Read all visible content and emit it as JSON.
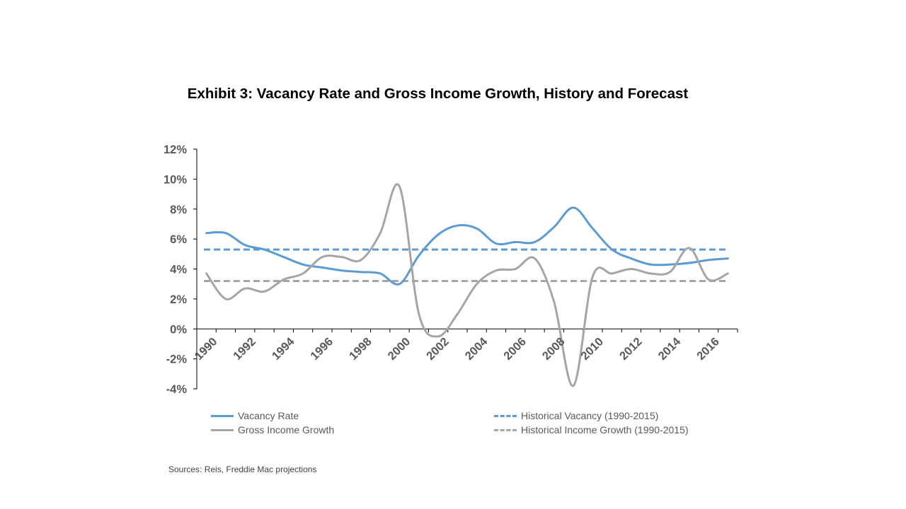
{
  "chart_data": {
    "type": "line",
    "title": "Exhibit 3: Vacancy Rate and Gross Income Growth, History and Forecast",
    "xlabel": "",
    "ylabel": "",
    "x": [
      1990,
      1991,
      1992,
      1993,
      1994,
      1995,
      1996,
      1997,
      1998,
      1999,
      2000,
      2001,
      2002,
      2003,
      2004,
      2005,
      2006,
      2007,
      2008,
      2009,
      2010,
      2011,
      2012,
      2013,
      2014,
      2015,
      2016,
      2017
    ],
    "x_tick_labels": [
      "1990",
      "1992",
      "1994",
      "1996",
      "1998",
      "2000",
      "2002",
      "2004",
      "2006",
      "2008",
      "2010",
      "2012",
      "2014",
      "2016"
    ],
    "ylim": [
      -4,
      12
    ],
    "y_ticks": [
      -4,
      -2,
      0,
      2,
      4,
      6,
      8,
      10,
      12
    ],
    "y_tick_labels": [
      "-4%",
      "-2%",
      "0%",
      "2%",
      "4%",
      "6%",
      "8%",
      "10%",
      "12%"
    ],
    "series": [
      {
        "name": "Vacancy Rate",
        "style": "solid",
        "color": "#5B9BD5",
        "values": [
          6.4,
          6.4,
          5.6,
          5.3,
          4.8,
          4.3,
          4.1,
          3.9,
          3.8,
          3.7,
          3.0,
          4.9,
          6.3,
          6.9,
          6.7,
          5.7,
          5.8,
          5.8,
          6.8,
          8.1,
          6.7,
          5.3,
          4.7,
          4.3,
          4.3,
          4.4,
          4.6,
          4.7
        ]
      },
      {
        "name": "Gross Income Growth",
        "style": "solid",
        "color": "#A5A5A5",
        "values": [
          3.7,
          2.0,
          2.7,
          2.5,
          3.3,
          3.7,
          4.8,
          4.8,
          4.6,
          6.4,
          9.5,
          1.0,
          -0.5,
          1.0,
          3.0,
          3.9,
          4.0,
          4.7,
          1.8,
          -3.8,
          3.5,
          3.7,
          4.0,
          3.7,
          3.8,
          5.4,
          3.3,
          3.7
        ]
      },
      {
        "name": "Historical Vacancy (1990-2015)",
        "style": "dashed",
        "color": "#5B9BD5",
        "values": [
          5.3,
          5.3,
          5.3,
          5.3,
          5.3,
          5.3,
          5.3,
          5.3,
          5.3,
          5.3,
          5.3,
          5.3,
          5.3,
          5.3,
          5.3,
          5.3,
          5.3,
          5.3,
          5.3,
          5.3,
          5.3,
          5.3,
          5.3,
          5.3,
          5.3,
          5.3,
          5.3,
          5.3
        ]
      },
      {
        "name": "Historical Income Growth (1990-2015)",
        "style": "dashed",
        "color": "#A5A5A5",
        "values": [
          3.2,
          3.2,
          3.2,
          3.2,
          3.2,
          3.2,
          3.2,
          3.2,
          3.2,
          3.2,
          3.2,
          3.2,
          3.2,
          3.2,
          3.2,
          3.2,
          3.2,
          3.2,
          3.2,
          3.2,
          3.2,
          3.2,
          3.2,
          3.2,
          3.2,
          3.2,
          3.2,
          3.2
        ]
      }
    ],
    "legend_position": "bottom",
    "grid": false
  },
  "source_note": "Sources: Reis, Freddie Mac projections"
}
